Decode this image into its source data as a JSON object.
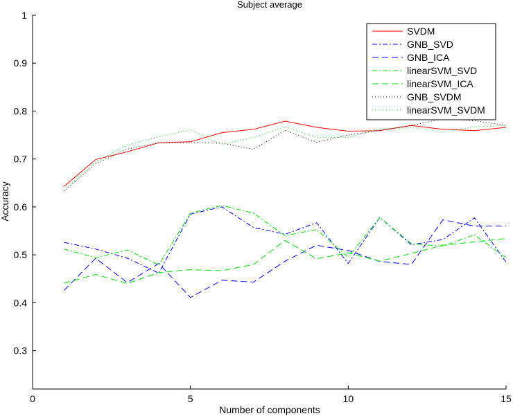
{
  "chart_data": {
    "type": "line",
    "title": "Subject average",
    "xlabel": "Number of components",
    "ylabel": "Accuracy",
    "xlim": [
      0,
      15
    ],
    "ylim": [
      0.22,
      1
    ],
    "xticks": [
      0,
      5,
      10,
      15
    ],
    "xtick_labels": [
      "0",
      "5",
      "10",
      "15"
    ],
    "yticks": [
      0.3,
      0.4,
      0.5,
      0.6,
      0.7,
      0.8,
      0.9,
      1
    ],
    "ytick_labels": [
      "0.3",
      "0.4",
      "0.5",
      "0.6",
      "0.7",
      "0.8",
      "0.9",
      "1"
    ],
    "grid": false,
    "legend_position": "top-right",
    "x": [
      1,
      2,
      3,
      4,
      5,
      6,
      7,
      8,
      9,
      10,
      11,
      12,
      13,
      14,
      15
    ],
    "series": [
      {
        "name": "SVDM",
        "color": "#ff0000",
        "dash": "solid",
        "values": [
          0.643,
          0.699,
          0.715,
          0.734,
          0.736,
          0.755,
          0.762,
          0.779,
          0.766,
          0.758,
          0.759,
          0.77,
          0.762,
          0.759,
          0.766
        ]
      },
      {
        "name": "GNB_SVD",
        "color": "#0000ff",
        "dash": "dashdot",
        "values": [
          0.526,
          0.512,
          0.493,
          0.462,
          0.585,
          0.6,
          0.557,
          0.543,
          0.567,
          0.482,
          0.578,
          0.521,
          0.532,
          0.577,
          0.485
        ]
      },
      {
        "name": "GNB_ICA",
        "color": "#0000ff",
        "dash": "dashed",
        "values": [
          0.426,
          0.493,
          0.442,
          0.482,
          0.411,
          0.447,
          0.443,
          0.487,
          0.52,
          0.509,
          0.486,
          0.48,
          0.573,
          0.56,
          0.56
        ]
      },
      {
        "name": "linearSVM_SVD",
        "color": "#00dd00",
        "dash": "dashdot",
        "values": [
          0.512,
          0.494,
          0.51,
          0.479,
          0.587,
          0.603,
          0.587,
          0.54,
          0.553,
          0.495,
          0.578,
          0.523,
          0.518,
          0.542,
          0.494
        ]
      },
      {
        "name": "linearSVM_ICA",
        "color": "#00dd00",
        "dash": "dashed",
        "values": [
          0.441,
          0.459,
          0.44,
          0.463,
          0.469,
          0.467,
          0.48,
          0.53,
          0.492,
          0.504,
          0.487,
          0.503,
          0.52,
          0.527,
          0.534
        ]
      },
      {
        "name": "GNB_SVDM",
        "color": "#000000",
        "dash": "dotted",
        "values": [
          0.633,
          0.69,
          0.721,
          0.734,
          0.734,
          0.733,
          0.72,
          0.76,
          0.735,
          0.75,
          0.76,
          0.77,
          0.784,
          0.78,
          0.77
        ]
      },
      {
        "name": "linearSVM_SVDM",
        "color": "#00dd00",
        "dash": "dotted",
        "values": [
          0.636,
          0.695,
          0.729,
          0.746,
          0.761,
          0.73,
          0.745,
          0.767,
          0.745,
          0.745,
          0.763,
          0.766,
          0.756,
          0.767,
          0.77
        ]
      }
    ]
  }
}
